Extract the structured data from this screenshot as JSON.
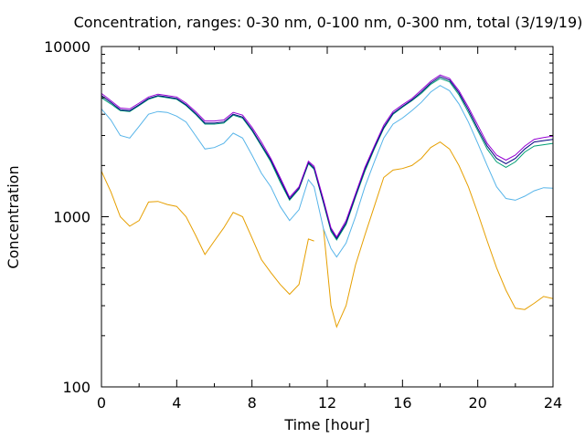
{
  "chart_data": {
    "type": "line",
    "title": "Concentration, ranges: 0-30 nm, 0-100 nm, 0-300 nm, total (3/19/19)",
    "xlabel": "Time [hour]",
    "ylabel": "Concentration",
    "xlim": [
      0,
      24
    ],
    "ylim": [
      100,
      10000
    ],
    "yscale": "log",
    "grid": false,
    "legend": "none",
    "x_ticks": [
      "0",
      "4",
      "8",
      "12",
      "16",
      "20",
      "24"
    ],
    "y_ticks": [
      "100",
      "1000",
      "10000"
    ],
    "series": [
      {
        "color": "#e69f00",
        "points": [
          [
            0,
            1850
          ],
          [
            0.5,
            1400
          ],
          [
            1,
            1000
          ],
          [
            1.5,
            880
          ],
          [
            2,
            950
          ],
          [
            2.5,
            1220
          ],
          [
            3,
            1230
          ],
          [
            3.5,
            1180
          ],
          [
            4,
            1150
          ],
          [
            4.5,
            1000
          ],
          [
            5,
            780
          ],
          [
            5.5,
            600
          ],
          [
            6,
            720
          ],
          [
            6.5,
            860
          ],
          [
            7,
            1060
          ],
          [
            7.5,
            1000
          ],
          [
            8,
            750
          ],
          [
            8.5,
            560
          ],
          [
            9,
            470
          ],
          [
            9.5,
            400
          ],
          [
            10,
            350
          ],
          [
            10.5,
            400
          ],
          [
            11,
            740
          ],
          [
            11.3,
            720
          ],
          null,
          [
            11.8,
            850
          ],
          [
            12.2,
            300
          ],
          [
            12.5,
            225
          ],
          [
            13,
            300
          ],
          [
            13.5,
            520
          ],
          [
            14,
            780
          ],
          [
            14.5,
            1150
          ],
          [
            15,
            1700
          ],
          [
            15.5,
            1880
          ],
          [
            16,
            1920
          ],
          [
            16.5,
            2000
          ],
          [
            17,
            2200
          ],
          [
            17.5,
            2550
          ],
          [
            18,
            2750
          ],
          [
            18.5,
            2500
          ],
          [
            19,
            2000
          ],
          [
            19.5,
            1500
          ],
          [
            20,
            1050
          ],
          [
            20.5,
            720
          ],
          [
            21,
            500
          ],
          [
            21.5,
            370
          ],
          [
            22,
            290
          ],
          [
            22.5,
            285
          ],
          [
            23,
            310
          ],
          [
            23.5,
            340
          ],
          [
            24,
            330
          ]
        ]
      },
      {
        "color": "#56b4e9",
        "points": [
          [
            0,
            4300
          ],
          [
            0.5,
            3700
          ],
          [
            1,
            3000
          ],
          [
            1.5,
            2900
          ],
          [
            2,
            3400
          ],
          [
            2.5,
            4000
          ],
          [
            3,
            4150
          ],
          [
            3.5,
            4100
          ],
          [
            4,
            3900
          ],
          [
            4.5,
            3600
          ],
          [
            5,
            3000
          ],
          [
            5.5,
            2500
          ],
          [
            6,
            2550
          ],
          [
            6.5,
            2700
          ],
          [
            7,
            3100
          ],
          [
            7.5,
            2900
          ],
          [
            8,
            2300
          ],
          [
            8.5,
            1800
          ],
          [
            9,
            1500
          ],
          [
            9.5,
            1150
          ],
          [
            10,
            950
          ],
          [
            10.5,
            1100
          ],
          [
            11,
            1650
          ],
          [
            11.3,
            1500
          ],
          [
            11.8,
            850
          ],
          [
            12.2,
            650
          ],
          [
            12.5,
            580
          ],
          [
            13,
            700
          ],
          [
            13.5,
            1000
          ],
          [
            14,
            1500
          ],
          [
            14.5,
            2100
          ],
          [
            15,
            2900
          ],
          [
            15.5,
            3500
          ],
          [
            16,
            3800
          ],
          [
            16.5,
            4200
          ],
          [
            17,
            4700
          ],
          [
            17.5,
            5400
          ],
          [
            18,
            5900
          ],
          [
            18.5,
            5500
          ],
          [
            19,
            4600
          ],
          [
            19.5,
            3600
          ],
          [
            20,
            2700
          ],
          [
            20.5,
            2000
          ],
          [
            21,
            1500
          ],
          [
            21.5,
            1280
          ],
          [
            22,
            1250
          ],
          [
            22.5,
            1320
          ],
          [
            23,
            1420
          ],
          [
            23.5,
            1480
          ],
          [
            24,
            1470
          ]
        ]
      },
      {
        "color": "#009e73",
        "points": [
          [
            0,
            5000
          ],
          [
            0.5,
            4600
          ],
          [
            1,
            4200
          ],
          [
            1.5,
            4150
          ],
          [
            2,
            4500
          ],
          [
            2.5,
            4900
          ],
          [
            3,
            5100
          ],
          [
            3.5,
            5000
          ],
          [
            4,
            4900
          ],
          [
            4.5,
            4500
          ],
          [
            5,
            4000
          ],
          [
            5.5,
            3500
          ],
          [
            6,
            3500
          ],
          [
            6.5,
            3550
          ],
          [
            7,
            3950
          ],
          [
            7.5,
            3800
          ],
          [
            8,
            3200
          ],
          [
            8.5,
            2600
          ],
          [
            9,
            2100
          ],
          [
            9.5,
            1600
          ],
          [
            10,
            1250
          ],
          [
            10.5,
            1450
          ],
          [
            11,
            2050
          ],
          [
            11.3,
            1900
          ],
          [
            11.8,
            1200
          ],
          [
            12.2,
            820
          ],
          [
            12.5,
            730
          ],
          [
            13,
            900
          ],
          [
            13.5,
            1300
          ],
          [
            14,
            1850
          ],
          [
            14.5,
            2500
          ],
          [
            15,
            3300
          ],
          [
            15.5,
            4000
          ],
          [
            16,
            4400
          ],
          [
            16.5,
            4800
          ],
          [
            17,
            5300
          ],
          [
            17.5,
            6000
          ],
          [
            18,
            6500
          ],
          [
            18.5,
            6200
          ],
          [
            19,
            5200
          ],
          [
            19.5,
            4100
          ],
          [
            20,
            3200
          ],
          [
            20.5,
            2500
          ],
          [
            21,
            2100
          ],
          [
            21.5,
            1950
          ],
          [
            22,
            2100
          ],
          [
            22.5,
            2400
          ],
          [
            23,
            2600
          ],
          [
            23.5,
            2650
          ],
          [
            24,
            2700
          ]
        ]
      },
      {
        "color": "#000080",
        "points": [
          [
            0,
            5150
          ],
          [
            0.5,
            4700
          ],
          [
            1,
            4250
          ],
          [
            1.5,
            4200
          ],
          [
            2,
            4550
          ],
          [
            2.5,
            4950
          ],
          [
            3,
            5150
          ],
          [
            3.5,
            5050
          ],
          [
            4,
            4950
          ],
          [
            4.5,
            4550
          ],
          [
            5,
            4050
          ],
          [
            5.5,
            3550
          ],
          [
            6,
            3550
          ],
          [
            6.5,
            3600
          ],
          [
            7,
            4000
          ],
          [
            7.5,
            3850
          ],
          [
            8,
            3250
          ],
          [
            8.5,
            2650
          ],
          [
            9,
            2150
          ],
          [
            9.5,
            1650
          ],
          [
            10,
            1270
          ],
          [
            10.5,
            1470
          ],
          [
            11,
            2080
          ],
          [
            11.3,
            1930
          ],
          [
            11.8,
            1220
          ],
          [
            12.2,
            840
          ],
          [
            12.5,
            745
          ],
          [
            13,
            920
          ],
          [
            13.5,
            1330
          ],
          [
            14,
            1900
          ],
          [
            14.5,
            2550
          ],
          [
            15,
            3350
          ],
          [
            15.5,
            4050
          ],
          [
            16,
            4450
          ],
          [
            16.5,
            4850
          ],
          [
            17,
            5400
          ],
          [
            17.5,
            6100
          ],
          [
            18,
            6650
          ],
          [
            18.5,
            6350
          ],
          [
            19,
            5350
          ],
          [
            19.5,
            4250
          ],
          [
            20,
            3300
          ],
          [
            20.5,
            2600
          ],
          [
            21,
            2200
          ],
          [
            21.5,
            2050
          ],
          [
            22,
            2200
          ],
          [
            22.5,
            2500
          ],
          [
            23,
            2750
          ],
          [
            23.5,
            2800
          ],
          [
            24,
            2850
          ]
        ]
      },
      {
        "color": "#9400d3",
        "points": [
          [
            0,
            5300
          ],
          [
            0.5,
            4800
          ],
          [
            1,
            4350
          ],
          [
            1.5,
            4300
          ],
          [
            2,
            4650
          ],
          [
            2.5,
            5050
          ],
          [
            3,
            5250
          ],
          [
            3.5,
            5150
          ],
          [
            4,
            5050
          ],
          [
            4.5,
            4650
          ],
          [
            5,
            4150
          ],
          [
            5.5,
            3650
          ],
          [
            6,
            3650
          ],
          [
            6.5,
            3700
          ],
          [
            7,
            4100
          ],
          [
            7.5,
            3950
          ],
          [
            8,
            3350
          ],
          [
            8.5,
            2750
          ],
          [
            9,
            2200
          ],
          [
            9.5,
            1700
          ],
          [
            10,
            1300
          ],
          [
            10.5,
            1500
          ],
          [
            11,
            2120
          ],
          [
            11.3,
            1980
          ],
          [
            11.8,
            1260
          ],
          [
            12.2,
            860
          ],
          [
            12.5,
            760
          ],
          [
            13,
            950
          ],
          [
            13.5,
            1360
          ],
          [
            14,
            1950
          ],
          [
            14.5,
            2600
          ],
          [
            15,
            3450
          ],
          [
            15.5,
            4150
          ],
          [
            16,
            4550
          ],
          [
            16.5,
            4950
          ],
          [
            17,
            5550
          ],
          [
            17.5,
            6250
          ],
          [
            18,
            6800
          ],
          [
            18.5,
            6500
          ],
          [
            19,
            5500
          ],
          [
            19.5,
            4400
          ],
          [
            20,
            3450
          ],
          [
            20.5,
            2700
          ],
          [
            21,
            2300
          ],
          [
            21.5,
            2150
          ],
          [
            22,
            2300
          ],
          [
            22.5,
            2600
          ],
          [
            23,
            2850
          ],
          [
            23.5,
            2920
          ],
          [
            24,
            2980
          ]
        ]
      }
    ]
  }
}
